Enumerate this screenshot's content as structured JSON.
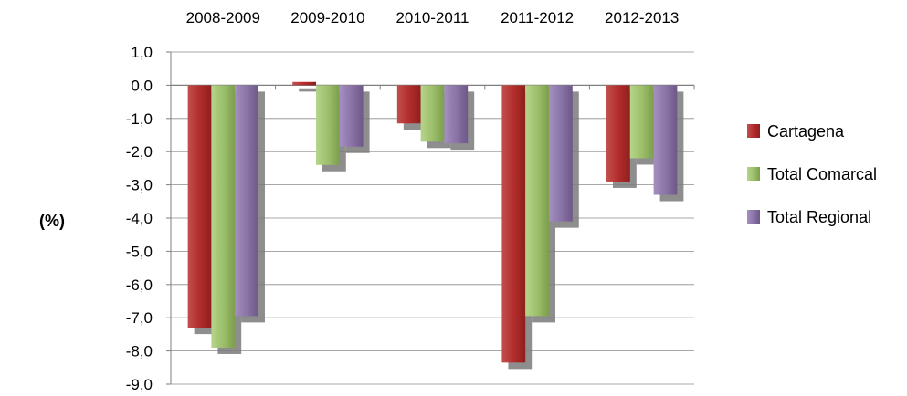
{
  "chart_data": {
    "type": "bar",
    "categories": [
      "2008-2009",
      "2009-2010",
      "2010-2011",
      "2011-2012",
      "2012-2013"
    ],
    "series": [
      {
        "name": "Cartagena",
        "values": [
          -7.3,
          0.1,
          -1.15,
          -8.35,
          -2.9
        ]
      },
      {
        "name": "Total Comarcal",
        "values": [
          -7.9,
          -2.4,
          -1.7,
          -6.95,
          -2.2
        ]
      },
      {
        "name": "Total Regional",
        "values": [
          -6.95,
          -1.85,
          -1.75,
          -4.1,
          -3.3
        ]
      }
    ],
    "ylabel": "(%)",
    "ylim": [
      -9,
      1
    ],
    "ytick_step": 1,
    "ytick_labels": [
      "1,0",
      "0.0",
      "-1,0",
      "-2,0",
      "-3,0",
      "-4,0",
      "-5,0",
      "-6,0",
      "-7,0",
      "-8,0",
      "-9,0"
    ],
    "category_axis_position": "top",
    "grid": true,
    "legend_position": "right",
    "colors": {
      "Cartagena": "#b32d2b",
      "Total Comarcal": "#9dc06b",
      "Total Regional": "#8b74a8",
      "grid": "#8c8c8c",
      "shadow": "#7a7a7a"
    }
  }
}
